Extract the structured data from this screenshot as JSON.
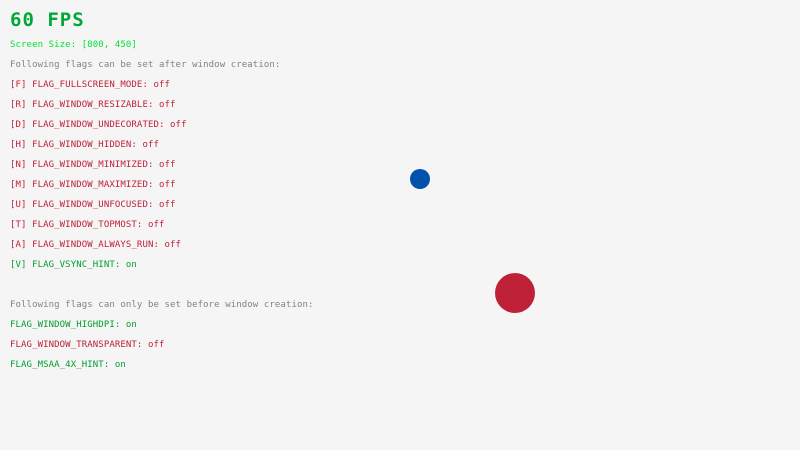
{
  "fps": "60 FPS",
  "screen_size": "Screen Size: [800, 450]",
  "after_header": "Following flags can be set after window creation:",
  "after_flags": [
    {
      "text": "[F] FLAG_FULLSCREEN_MODE: off",
      "on": false
    },
    {
      "text": "[R] FLAG_WINDOW_RESIZABLE: off",
      "on": false
    },
    {
      "text": "[D] FLAG_WINDOW_UNDECORATED: off",
      "on": false
    },
    {
      "text": "[H] FLAG_WINDOW_HIDDEN: off",
      "on": false
    },
    {
      "text": "[N] FLAG_WINDOW_MINIMIZED: off",
      "on": false
    },
    {
      "text": "[M] FLAG_WINDOW_MAXIMIZED: off",
      "on": false
    },
    {
      "text": "[U] FLAG_WINDOW_UNFOCUSED: off",
      "on": false
    },
    {
      "text": "[T] FLAG_WINDOW_TOPMOST: off",
      "on": false
    },
    {
      "text": "[A] FLAG_WINDOW_ALWAYS_RUN: off",
      "on": false
    },
    {
      "text": "[V] FLAG_VSYNC_HINT: on",
      "on": true
    }
  ],
  "before_header": "Following flags can only be set before window creation:",
  "before_flags": [
    {
      "text": "FLAG_WINDOW_HIGHDPI: on",
      "on": true
    },
    {
      "text": "FLAG_WINDOW_TRANSPARENT: off",
      "on": false
    },
    {
      "text": "FLAG_MSAA_4X_HINT: on",
      "on": true
    }
  ],
  "colors": {
    "on": "#009e2f",
    "off": "#be2137",
    "screen_size": "#00e430",
    "background": "#f5f5f5",
    "ball": "#0052ac",
    "circle": "#be2137"
  }
}
